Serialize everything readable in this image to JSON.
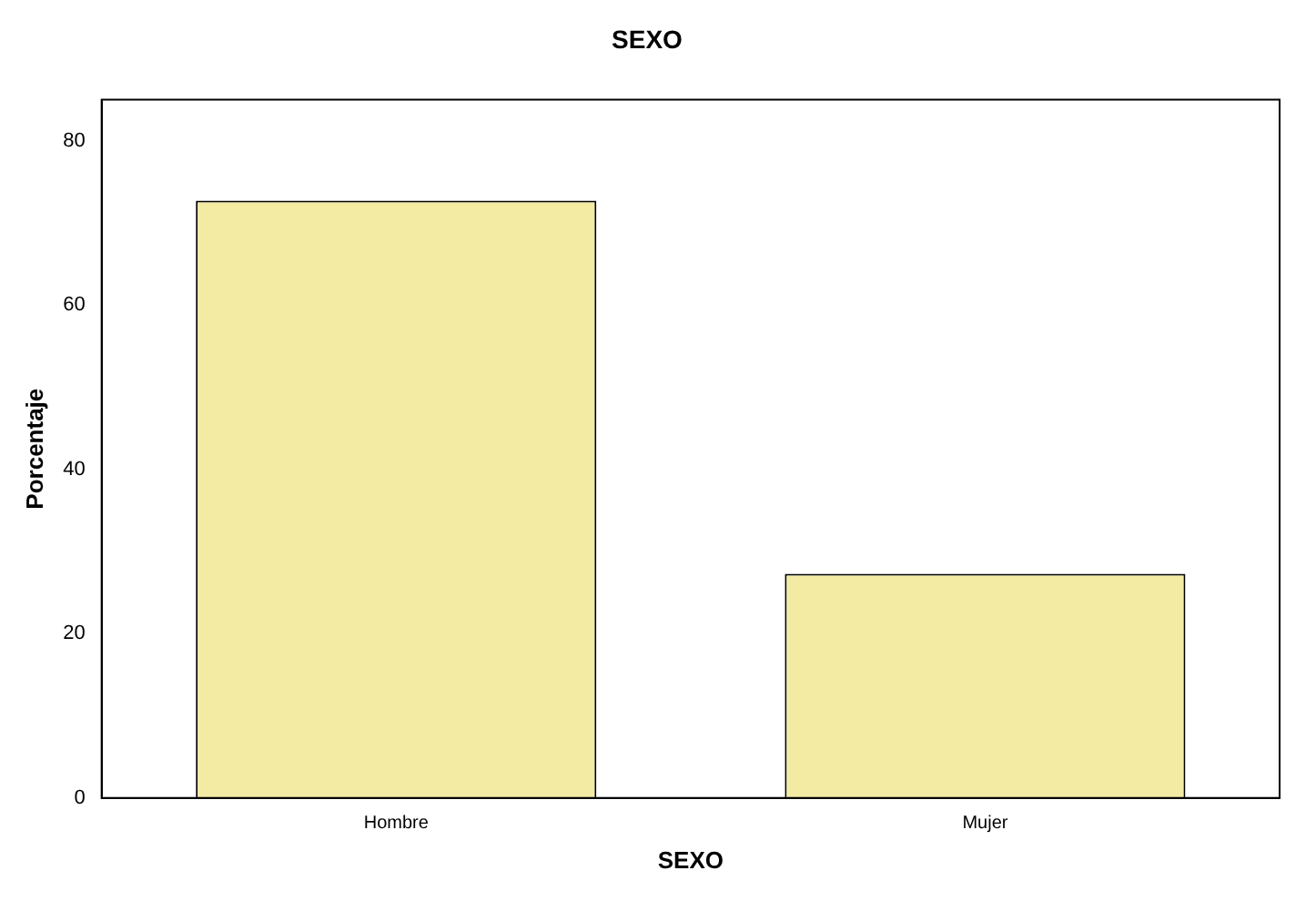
{
  "chart_data": {
    "type": "bar",
    "title": "SEXO",
    "xlabel": "SEXO",
    "ylabel": "Porcentaje",
    "categories": [
      "Hombre",
      "Mujer"
    ],
    "values": [
      72.7,
      27.3
    ],
    "color": "#f3eba4",
    "ylim": [
      0,
      85
    ],
    "yticks": [
      0,
      20,
      40,
      60,
      80
    ],
    "grid": false,
    "legend": false
  }
}
